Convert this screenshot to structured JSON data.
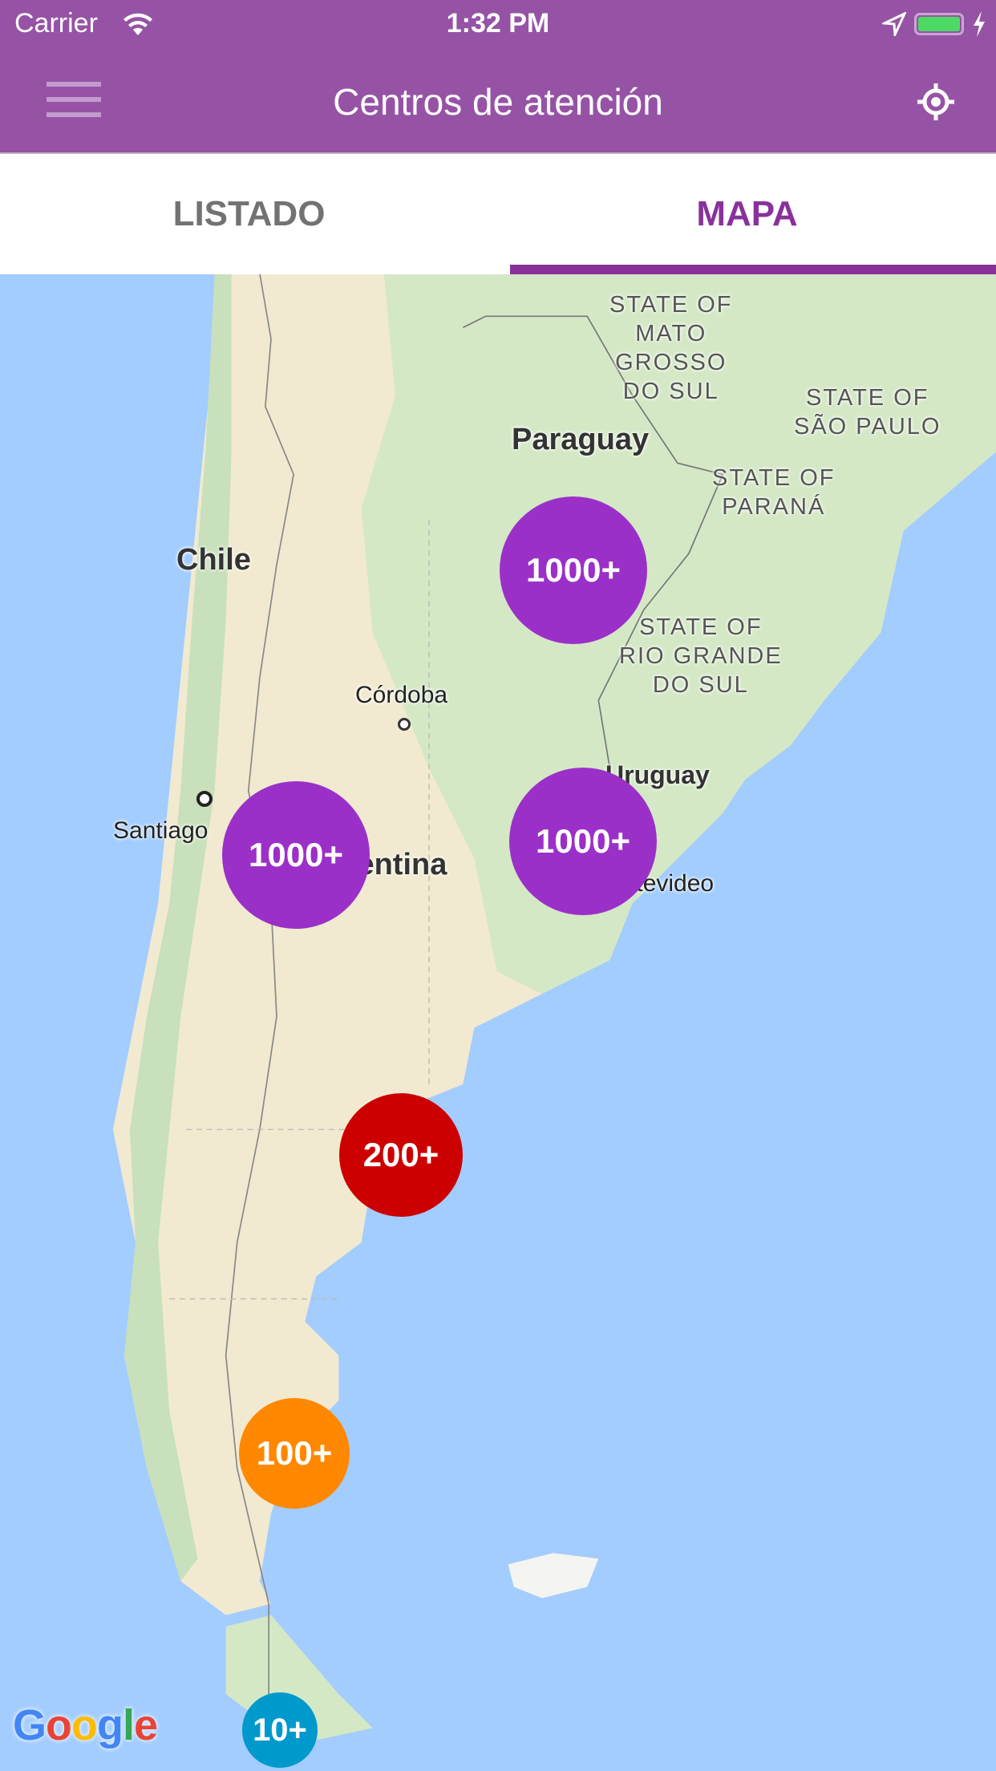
{
  "status_bar": {
    "carrier": "Carrier",
    "time": "1:32 PM",
    "battery_color": "#4cd964"
  },
  "header": {
    "title": "Centros de atención",
    "background": "#9653a5",
    "menu_icon": "hamburger-menu-icon",
    "locate_icon": "my-location-icon"
  },
  "tabs": [
    {
      "label": "LISTADO",
      "selected": false
    },
    {
      "label": "MAPA",
      "selected": true
    }
  ],
  "accent_color": "#88319b",
  "map": {
    "labels": {
      "mato_grosso": "STATE OF\nMATO\nGROSSO\nDO SUL",
      "sao_paulo": "STATE OF\nSÃO PAULO",
      "parana": "STATE OF\nPARANÁ",
      "rio_grande": "STATE OF\nRIO GRANDE\nDO SUL",
      "paraguay": "Paraguay",
      "chile": "Chile",
      "cordoba": "Córdoba",
      "uruguay": "Uruguay",
      "santiago": "Santiago",
      "argentina": "Argentina",
      "montevideo": "Montevideo"
    },
    "clusters": [
      {
        "label": "1000+",
        "color": "#9b30c8"
      },
      {
        "label": "1000+",
        "color": "#9b30c8"
      },
      {
        "label": "1000+",
        "color": "#9b30c8"
      },
      {
        "label": "200+",
        "color": "#cc0000"
      },
      {
        "label": "100+",
        "color": "#ff8800"
      },
      {
        "label": "10+",
        "color": "#0099cc"
      }
    ],
    "attribution": "Google"
  }
}
